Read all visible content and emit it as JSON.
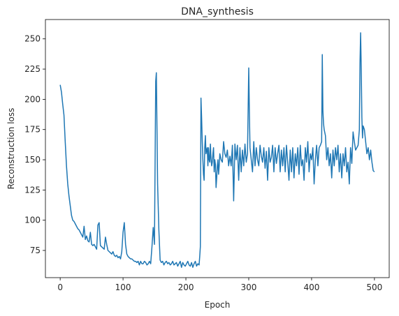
{
  "chart_data": {
    "type": "line",
    "title": "DNA_synthesis",
    "xlabel": "Epoch",
    "ylabel": "Reconstruction loss",
    "xlim": [
      -23.5,
      523.5
    ],
    "ylim": [
      52.5,
      266.0
    ],
    "xticks": [
      0,
      100,
      200,
      300,
      400,
      500
    ],
    "yticks": [
      75,
      100,
      125,
      150,
      175,
      200,
      225,
      250
    ],
    "grid": false,
    "series": [
      {
        "color": "#1f77b4",
        "points": [
          [
            0,
            212
          ],
          [
            2,
            206
          ],
          [
            4,
            196
          ],
          [
            6,
            187
          ],
          [
            8,
            165
          ],
          [
            10,
            145
          ],
          [
            12,
            130
          ],
          [
            14,
            120
          ],
          [
            16,
            112
          ],
          [
            18,
            104
          ],
          [
            20,
            100
          ],
          [
            22,
            99
          ],
          [
            24,
            97
          ],
          [
            26,
            95
          ],
          [
            28,
            93
          ],
          [
            30,
            92
          ],
          [
            32,
            90
          ],
          [
            34,
            88
          ],
          [
            36,
            86
          ],
          [
            38,
            95
          ],
          [
            40,
            84
          ],
          [
            42,
            87
          ],
          [
            44,
            83
          ],
          [
            46,
            82
          ],
          [
            48,
            90
          ],
          [
            50,
            80
          ],
          [
            52,
            79
          ],
          [
            54,
            80
          ],
          [
            56,
            78
          ],
          [
            58,
            76
          ],
          [
            60,
            96
          ],
          [
            62,
            98
          ],
          [
            64,
            79
          ],
          [
            66,
            78
          ],
          [
            68,
            77
          ],
          [
            70,
            76
          ],
          [
            72,
            86
          ],
          [
            74,
            80
          ],
          [
            76,
            75
          ],
          [
            78,
            74
          ],
          [
            80,
            73
          ],
          [
            82,
            72
          ],
          [
            84,
            74
          ],
          [
            86,
            71
          ],
          [
            88,
            70
          ],
          [
            90,
            71
          ],
          [
            92,
            69
          ],
          [
            94,
            70
          ],
          [
            96,
            68
          ],
          [
            98,
            74
          ],
          [
            100,
            90
          ],
          [
            102,
            98
          ],
          [
            104,
            80
          ],
          [
            106,
            72
          ],
          [
            108,
            70
          ],
          [
            110,
            69
          ],
          [
            112,
            68
          ],
          [
            114,
            68
          ],
          [
            116,
            67
          ],
          [
            118,
            66
          ],
          [
            120,
            66
          ],
          [
            122,
            65
          ],
          [
            124,
            66
          ],
          [
            126,
            63
          ],
          [
            128,
            66
          ],
          [
            130,
            64
          ],
          [
            132,
            64
          ],
          [
            134,
            66
          ],
          [
            136,
            65
          ],
          [
            138,
            63
          ],
          [
            140,
            64
          ],
          [
            142,
            66
          ],
          [
            144,
            64
          ],
          [
            146,
            78
          ],
          [
            148,
            94
          ],
          [
            150,
            80
          ],
          [
            152,
            215
          ],
          [
            153,
            222
          ],
          [
            155,
            130
          ],
          [
            157,
            92
          ],
          [
            159,
            67
          ],
          [
            161,
            65
          ],
          [
            163,
            66
          ],
          [
            165,
            63
          ],
          [
            167,
            65
          ],
          [
            169,
            66
          ],
          [
            171,
            64
          ],
          [
            173,
            65
          ],
          [
            175,
            63
          ],
          [
            177,
            64
          ],
          [
            179,
            66
          ],
          [
            181,
            63
          ],
          [
            183,
            64
          ],
          [
            185,
            65
          ],
          [
            187,
            62
          ],
          [
            189,
            64
          ],
          [
            191,
            66
          ],
          [
            193,
            61
          ],
          [
            195,
            65
          ],
          [
            197,
            63
          ],
          [
            199,
            62
          ],
          [
            201,
            64
          ],
          [
            203,
            66
          ],
          [
            205,
            63
          ],
          [
            207,
            62
          ],
          [
            209,
            65
          ],
          [
            211,
            61
          ],
          [
            213,
            64
          ],
          [
            215,
            66
          ],
          [
            217,
            62
          ],
          [
            219,
            64
          ],
          [
            221,
            63
          ],
          [
            222,
            70
          ],
          [
            223,
            78
          ],
          [
            224,
            201
          ],
          [
            225,
            185
          ],
          [
            226,
            166
          ],
          [
            227,
            150
          ],
          [
            228,
            138
          ],
          [
            229,
            133
          ],
          [
            230,
            160
          ],
          [
            231,
            170
          ],
          [
            232,
            155
          ],
          [
            233,
            158
          ],
          [
            234,
            160
          ],
          [
            235,
            145
          ],
          [
            236,
            160
          ],
          [
            237,
            150
          ],
          [
            238,
            148
          ],
          [
            239,
            163
          ],
          [
            240,
            151
          ],
          [
            241,
            145
          ],
          [
            242,
            148
          ],
          [
            243,
            155
          ],
          [
            244,
            160
          ],
          [
            245,
            140
          ],
          [
            246,
            150
          ],
          [
            247,
            146
          ],
          [
            248,
            127
          ],
          [
            249,
            135
          ],
          [
            250,
            145
          ],
          [
            251,
            150
          ],
          [
            252,
            138
          ],
          [
            253,
            145
          ],
          [
            254,
            155
          ],
          [
            256,
            150
          ],
          [
            258,
            148
          ],
          [
            260,
            165
          ],
          [
            262,
            155
          ],
          [
            264,
            152
          ],
          [
            266,
            158
          ],
          [
            268,
            145
          ],
          [
            270,
            153
          ],
          [
            272,
            145
          ],
          [
            274,
            162
          ],
          [
            276,
            116
          ],
          [
            278,
            163
          ],
          [
            280,
            150
          ],
          [
            282,
            162
          ],
          [
            284,
            133
          ],
          [
            286,
            160
          ],
          [
            288,
            140
          ],
          [
            290,
            158
          ],
          [
            292,
            145
          ],
          [
            294,
            163
          ],
          [
            296,
            148
          ],
          [
            298,
            155
          ],
          [
            299,
            190
          ],
          [
            300,
            226
          ],
          [
            301,
            190
          ],
          [
            302,
            160
          ],
          [
            304,
            150
          ],
          [
            306,
            140
          ],
          [
            308,
            165
          ],
          [
            310,
            145
          ],
          [
            312,
            160
          ],
          [
            314,
            150
          ],
          [
            316,
            145
          ],
          [
            318,
            162
          ],
          [
            320,
            153
          ],
          [
            322,
            148
          ],
          [
            324,
            160
          ],
          [
            326,
            143
          ],
          [
            328,
            157
          ],
          [
            330,
            133
          ],
          [
            332,
            160
          ],
          [
            334,
            148
          ],
          [
            336,
            152
          ],
          [
            338,
            162
          ],
          [
            340,
            140
          ],
          [
            342,
            160
          ],
          [
            344,
            147
          ],
          [
            346,
            155
          ],
          [
            348,
            162
          ],
          [
            350,
            140
          ],
          [
            352,
            158
          ],
          [
            354,
            145
          ],
          [
            356,
            160
          ],
          [
            358,
            140
          ],
          [
            360,
            162
          ],
          [
            362,
            148
          ],
          [
            364,
            133
          ],
          [
            366,
            158
          ],
          [
            368,
            140
          ],
          [
            370,
            160
          ],
          [
            372,
            135
          ],
          [
            374,
            155
          ],
          [
            376,
            145
          ],
          [
            378,
            160
          ],
          [
            380,
            138
          ],
          [
            382,
            162
          ],
          [
            384,
            145
          ],
          [
            386,
            150
          ],
          [
            388,
            133
          ],
          [
            390,
            160
          ],
          [
            392,
            148
          ],
          [
            394,
            165
          ],
          [
            396,
            140
          ],
          [
            398,
            155
          ],
          [
            400,
            150
          ],
          [
            402,
            160
          ],
          [
            404,
            130
          ],
          [
            406,
            150
          ],
          [
            408,
            162
          ],
          [
            410,
            145
          ],
          [
            412,
            160
          ],
          [
            414,
            162
          ],
          [
            416,
            165
          ],
          [
            417,
            237
          ],
          [
            418,
            190
          ],
          [
            419,
            180
          ],
          [
            420,
            175
          ],
          [
            422,
            170
          ],
          [
            424,
            150
          ],
          [
            426,
            160
          ],
          [
            428,
            145
          ],
          [
            430,
            155
          ],
          [
            432,
            135
          ],
          [
            434,
            158
          ],
          [
            436,
            145
          ],
          [
            438,
            160
          ],
          [
            440,
            150
          ],
          [
            442,
            162
          ],
          [
            444,
            140
          ],
          [
            446,
            155
          ],
          [
            448,
            135
          ],
          [
            450,
            155
          ],
          [
            452,
            145
          ],
          [
            454,
            160
          ],
          [
            456,
            140
          ],
          [
            458,
            148
          ],
          [
            460,
            130
          ],
          [
            462,
            160
          ],
          [
            464,
            147
          ],
          [
            466,
            173
          ],
          [
            468,
            165
          ],
          [
            470,
            158
          ],
          [
            472,
            160
          ],
          [
            474,
            162
          ],
          [
            476,
            175
          ],
          [
            477,
            230
          ],
          [
            478,
            255
          ],
          [
            479,
            225
          ],
          [
            480,
            185
          ],
          [
            481,
            168
          ],
          [
            482,
            178
          ],
          [
            484,
            175
          ],
          [
            486,
            165
          ],
          [
            488,
            155
          ],
          [
            490,
            160
          ],
          [
            492,
            150
          ],
          [
            494,
            158
          ],
          [
            496,
            148
          ],
          [
            498,
            141
          ],
          [
            500,
            140
          ]
        ]
      }
    ]
  }
}
